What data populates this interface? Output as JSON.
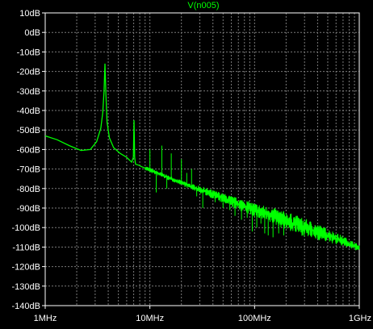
{
  "window": {
    "background": "#000000",
    "grid_color": "#7a7a7a",
    "axis_text_color": "#ffffff",
    "trace_color": "#00ff00"
  },
  "chart_data": {
    "type": "line",
    "title": "V(n005)",
    "xscale": "log",
    "yunit": "dB",
    "xlim": [
      1000000,
      1000000000
    ],
    "ylim": [
      -140,
      10
    ],
    "x_ticks": [
      1000000,
      10000000,
      100000000,
      1000000000
    ],
    "x_tick_labels": [
      "1MHz",
      "10MHz",
      "100MHz",
      "1GHz"
    ],
    "y_ticks": [
      10,
      0,
      -10,
      -20,
      -30,
      -40,
      -50,
      -60,
      -70,
      -80,
      -90,
      -100,
      -110,
      -120,
      -130,
      -140
    ],
    "y_tick_labels": [
      "10dB",
      "0dB",
      "-10dB",
      "-20dB",
      "-30dB",
      "-40dB",
      "-50dB",
      "-60dB",
      "-70dB",
      "-80dB",
      "-90dB",
      "-100dB",
      "-110dB",
      "-120dB",
      "-130dB",
      "-140dB"
    ],
    "grid": true,
    "series": [
      {
        "name": "V(n005)",
        "color": "#00ff00",
        "x": [
          1000000,
          1300000,
          1700000,
          2200000,
          2700000,
          3100000,
          3400000,
          3550000,
          3650000,
          3720000,
          3800000,
          3900000,
          4100000,
          4500000,
          5200000,
          6000000,
          6700000,
          6950000,
          7050000,
          7150000,
          7300000,
          7800000,
          8500000,
          9500000,
          11000000,
          13000000,
          15000000,
          18000000,
          20000000,
          22000000,
          25000000,
          28000000,
          32000000,
          36000000,
          40000000,
          45000000,
          50000000,
          56000000,
          63000000,
          70000000,
          80000000,
          90000000,
          100000000,
          120000000,
          150000000,
          200000000,
          300000000,
          500000000,
          700000000,
          1000000000
        ],
        "y": [
          -53,
          -55,
          -58,
          -60.5,
          -60,
          -56,
          -49,
          -41,
          -30,
          -16,
          -32,
          -46,
          -54,
          -59,
          -62,
          -64,
          -66.5,
          -64,
          -45,
          -64,
          -67.5,
          -68,
          -69,
          -70,
          -71.5,
          -73,
          -74.5,
          -76,
          -77,
          -78,
          -79,
          -80,
          -81,
          -82,
          -83,
          -84,
          -85,
          -86,
          -87,
          -88,
          -89,
          -90,
          -91,
          -92.5,
          -94,
          -96.5,
          -100,
          -104,
          -107,
          -110.5
        ]
      }
    ],
    "spikes_db": [
      [
        7050000,
        -45
      ],
      [
        10000000,
        -60
      ],
      [
        11500000,
        -82
      ],
      [
        13000000,
        -58
      ],
      [
        14500000,
        -80
      ],
      [
        16000000,
        -62
      ],
      [
        18000000,
        -77
      ],
      [
        20000000,
        -65
      ],
      [
        22500000,
        -72
      ],
      [
        25000000,
        -70
      ],
      [
        28000000,
        -84
      ],
      [
        32000000,
        -90
      ],
      [
        36000000,
        -83
      ],
      [
        42000000,
        -87
      ],
      [
        50000000,
        -90
      ],
      [
        58000000,
        -91
      ],
      [
        65000000,
        -94
      ],
      [
        75000000,
        -96
      ],
      [
        85000000,
        -95
      ],
      [
        95000000,
        -102
      ],
      [
        105000000,
        -100
      ],
      [
        115000000,
        -98
      ],
      [
        125000000,
        -103
      ],
      [
        135000000,
        -104
      ],
      [
        150000000,
        -105
      ],
      [
        170000000,
        -103
      ],
      [
        190000000,
        -104
      ]
    ]
  }
}
